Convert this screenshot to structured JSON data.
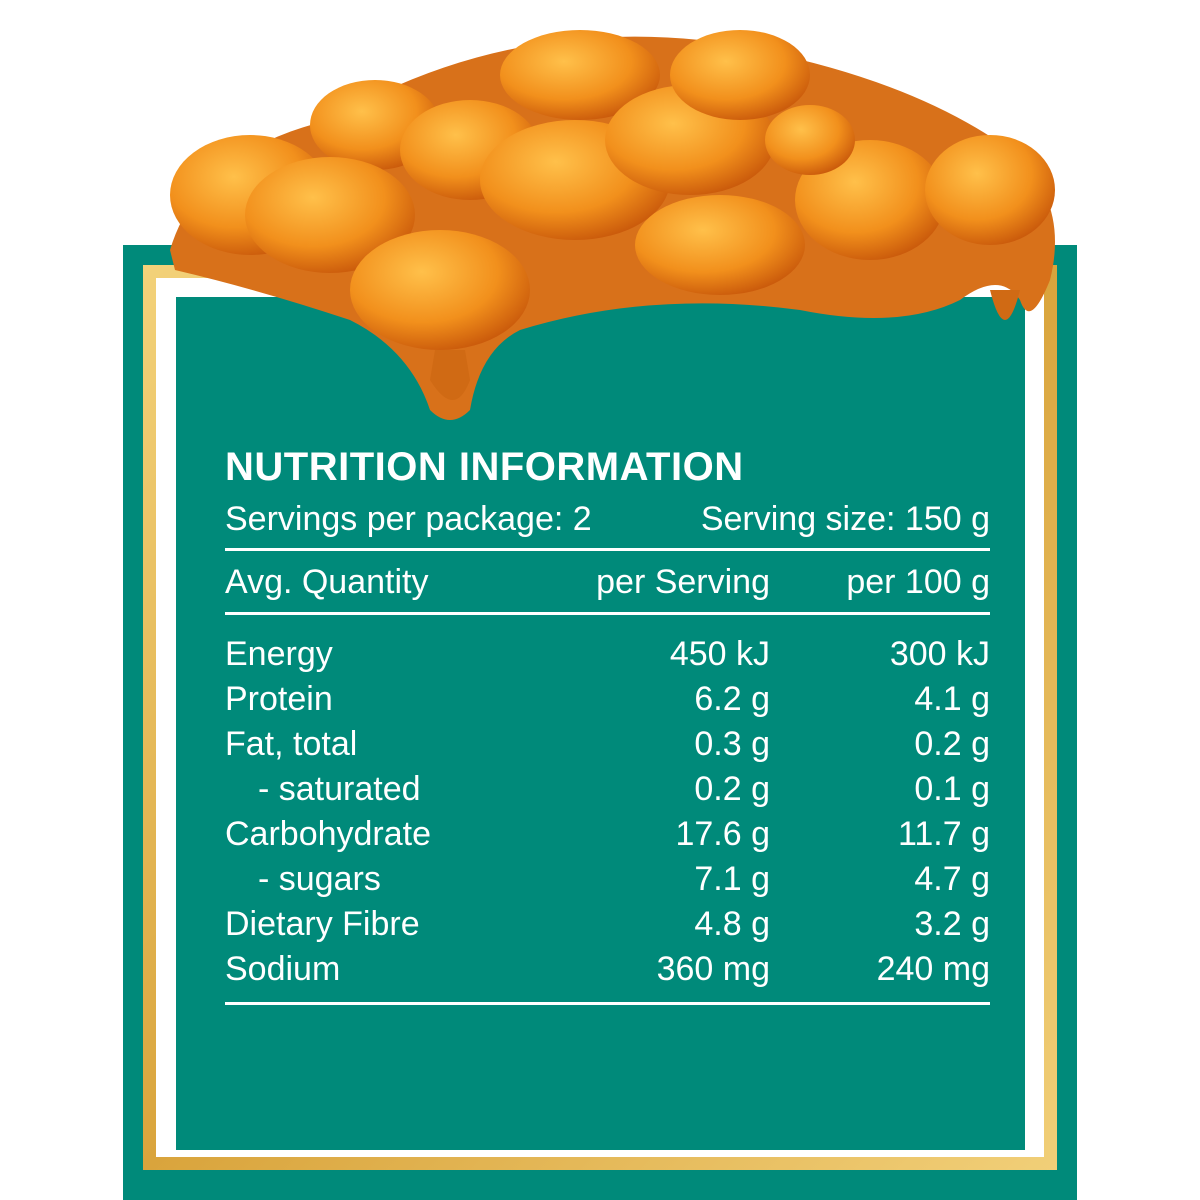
{
  "panel": {
    "title": "NUTRITION INFORMATION",
    "servings_per_package": "Servings per package: 2",
    "serving_size": "Serving size: 150 g",
    "columns": [
      "Avg. Quantity",
      "per Serving",
      "per 100 g"
    ],
    "rows": [
      [
        "Energy",
        "450 kJ",
        "300 kJ"
      ],
      [
        "Protein",
        "6.2 g",
        "4.1 g"
      ],
      [
        "Fat, total",
        "0.3 g",
        "0.2 g"
      ],
      [
        "- saturated",
        "0.2 g",
        "0.1 g"
      ],
      [
        "Carbohydrate",
        "17.6 g",
        "11.7 g"
      ],
      [
        "- sugars",
        "7.1 g",
        "4.7 g"
      ],
      [
        "Dietary Fibre",
        "4.8 g",
        "3.2 g"
      ],
      [
        "Sodium",
        "360 mg",
        "240 mg"
      ]
    ]
  }
}
